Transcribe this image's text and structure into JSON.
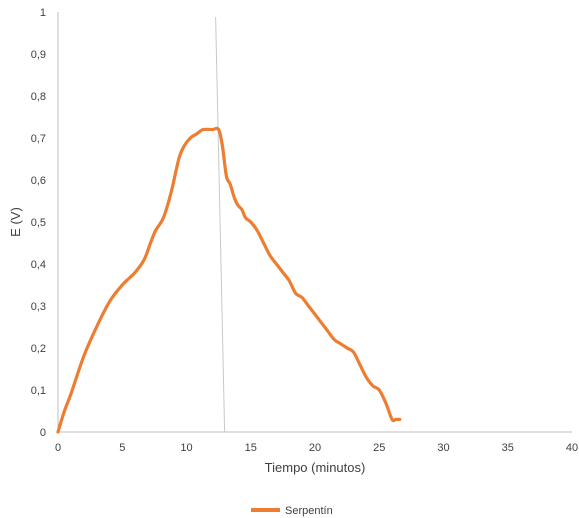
{
  "chart_data": {
    "type": "line",
    "title": "",
    "xlabel": "Tiempo (minutos)",
    "ylabel": "E (V)",
    "xlim": [
      0,
      40
    ],
    "ylim": [
      0,
      1
    ],
    "x_ticks": [
      0,
      5,
      10,
      15,
      20,
      25,
      30,
      35,
      40
    ],
    "y_ticks": [
      0,
      0.1,
      0.2,
      0.3,
      0.4,
      0.5,
      0.6,
      0.7,
      0.8,
      0.9,
      1
    ],
    "x_tick_labels": [
      "0",
      "5",
      "10",
      "15",
      "20",
      "25",
      "30",
      "35",
      "40"
    ],
    "y_tick_labels": [
      "0",
      "0,1",
      "0,2",
      "0,3",
      "0,4",
      "0,5",
      "0,6",
      "0,7",
      "0,8",
      "0,9",
      "1"
    ],
    "grid": false,
    "legend_position": "bottom",
    "vertical_line_x": 12.5,
    "series": [
      {
        "name": "Serpentín",
        "color": "#ED7D31",
        "x": [
          0,
          0.5,
          1,
          2,
          3,
          4,
          5,
          6,
          6.7,
          7.2,
          7.6,
          8.2,
          8.8,
          9.4,
          9.8,
          10.3,
          10.8,
          11.3,
          12,
          12.5,
          12.8,
          13.1,
          13.4,
          13.7,
          14.0,
          14.3,
          14.6,
          15.0,
          15.5,
          16.0,
          16.5,
          17.0,
          17.5,
          18.0,
          18.5,
          19.0,
          19.5,
          20.0,
          20.5,
          21.0,
          21.5,
          22.0,
          22.5,
          23.0,
          23.5,
          24.0,
          24.5,
          25.0,
          25.5,
          26.0,
          26.3,
          26.6
        ],
        "values": [
          0,
          0.05,
          0.09,
          0.18,
          0.25,
          0.31,
          0.35,
          0.38,
          0.41,
          0.45,
          0.48,
          0.51,
          0.57,
          0.65,
          0.68,
          0.7,
          0.71,
          0.72,
          0.72,
          0.72,
          0.68,
          0.61,
          0.59,
          0.56,
          0.54,
          0.53,
          0.51,
          0.5,
          0.48,
          0.45,
          0.42,
          0.4,
          0.38,
          0.36,
          0.33,
          0.32,
          0.3,
          0.28,
          0.26,
          0.24,
          0.22,
          0.21,
          0.2,
          0.19,
          0.16,
          0.13,
          0.11,
          0.1,
          0.07,
          0.03,
          0.03,
          0.03
        ]
      }
    ]
  }
}
